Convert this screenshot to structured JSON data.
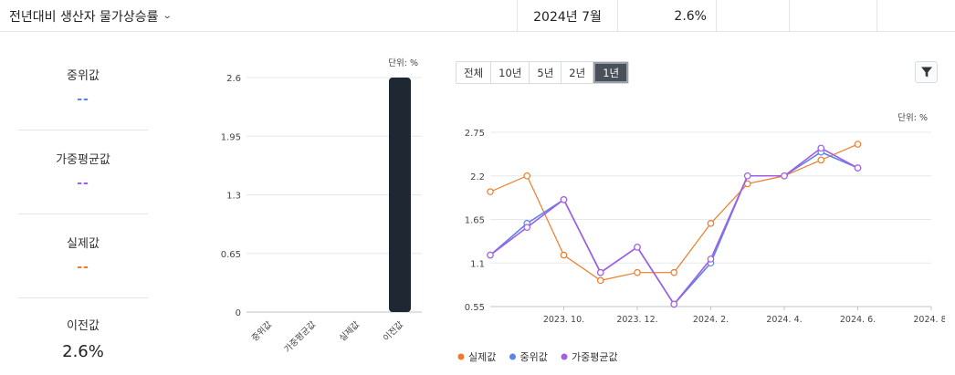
{
  "header": {
    "title": "전년대비 생산자 물가상승률",
    "date": "2024년 7월",
    "value": "2.6%"
  },
  "stats": [
    {
      "label": "중위값",
      "value": "--",
      "color": "#5b84e8"
    },
    {
      "label": "가중평균값",
      "value": "--",
      "color": "#a35ee6"
    },
    {
      "label": "실제값",
      "value": "--",
      "color": "#f07a28"
    },
    {
      "label": "이전값",
      "value": "2.6%",
      "color": "#222222"
    }
  ],
  "period_tabs": [
    "전체",
    "10년",
    "5년",
    "2년",
    "1년"
  ],
  "active_period": "1년",
  "chart_data": [
    {
      "type": "bar",
      "unit_label": "단위: %",
      "categories": [
        "중위값",
        "가중평균값",
        "실제값",
        "이전값"
      ],
      "values": [
        0,
        0,
        0,
        2.6
      ],
      "yticks": [
        0,
        0.65,
        1.3,
        1.95,
        2.6
      ],
      "ytick_labels": [
        "0",
        "0.65",
        "1.3",
        "1.95",
        "2.6"
      ],
      "ylim": [
        0,
        2.6
      ],
      "bar_color": "#1f2733",
      "grid": true
    },
    {
      "type": "line",
      "unit_label": "단위: %",
      "x": [
        "2023-08",
        "2023-09",
        "2023-10",
        "2023-11",
        "2023-12",
        "2024-01",
        "2024-02",
        "2024-03",
        "2024-04",
        "2024-05",
        "2024-06",
        "2024-07"
      ],
      "xtick_labels": [
        "2023. 10.",
        "2023. 12.",
        "2024. 2.",
        "2024. 4.",
        "2024. 6.",
        "2024. 8."
      ],
      "xtick_months": [
        "2023-10",
        "2023-12",
        "2024-02",
        "2024-04",
        "2024-06",
        "2024-08"
      ],
      "yticks": [
        0.55,
        1.1,
        1.65,
        2.2,
        2.75
      ],
      "ytick_labels": [
        "0.55",
        "1.1",
        "1.65",
        "2.2",
        "2.75"
      ],
      "ylim": [
        0.55,
        2.75
      ],
      "x_range": [
        "2023-08",
        "2024-08"
      ],
      "grid": true,
      "legend_position": "bottom-left",
      "series": [
        {
          "name": "실제값",
          "color": "#f07a28",
          "values": [
            2.0,
            2.2,
            1.2,
            0.88,
            0.98,
            0.98,
            1.6,
            2.1,
            2.2,
            2.4,
            2.6,
            null
          ]
        },
        {
          "name": "중위값",
          "color": "#5b84e8",
          "values": [
            1.2,
            1.6,
            1.9,
            0.98,
            1.3,
            0.58,
            1.1,
            2.2,
            2.2,
            2.5,
            2.3,
            null
          ]
        },
        {
          "name": "가중평균값",
          "color": "#a35ee6",
          "values": [
            1.2,
            1.55,
            1.9,
            0.98,
            1.3,
            0.58,
            1.15,
            2.2,
            2.2,
            2.55,
            2.3,
            null
          ]
        }
      ]
    }
  ]
}
